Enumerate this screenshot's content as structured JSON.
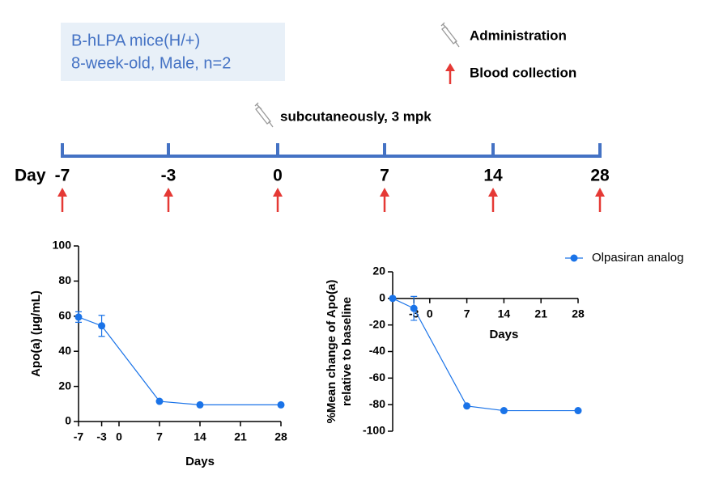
{
  "info_box": {
    "lines": [
      "B-hLPA mice(H/+)",
      "8-week-old, Male, n=2"
    ]
  },
  "key": {
    "administration": "Administration",
    "blood_collection": "Blood collection"
  },
  "timeline": {
    "prefix": "Day",
    "dosing_label": "subcutaneously, 3 mpk",
    "days": [
      -7,
      -3,
      0,
      7,
      14,
      28
    ]
  },
  "chart_data": [
    {
      "type": "line",
      "xlabel": "Days",
      "ylabel": [
        "Apo(a) (μg/mL)"
      ],
      "xlim": [
        -7,
        28
      ],
      "xticks": [
        -7,
        -3,
        0,
        7,
        14,
        21,
        28
      ],
      "ylim": [
        0,
        100
      ],
      "yticks": [
        0,
        20,
        40,
        60,
        80,
        100
      ],
      "series": [
        {
          "color": "#1a73e8",
          "x": [
            -7,
            -3,
            7,
            14,
            28
          ],
          "values": [
            59.5,
            54.5,
            11.5,
            9.5,
            9.5
          ],
          "errors": [
            3,
            6,
            null,
            null,
            null
          ]
        }
      ]
    },
    {
      "type": "line",
      "xlabel": "Days",
      "ylabel": [
        "%Mean change of Apo(a)",
        "relative to baseline"
      ],
      "xlim": [
        -7,
        28
      ],
      "xticks": [
        -3,
        0,
        7,
        14,
        21,
        28
      ],
      "ylim": [
        -100,
        20
      ],
      "yticks": [
        -100,
        -80,
        -60,
        -40,
        -20,
        0,
        20
      ],
      "legend": "upper right",
      "series": [
        {
          "name": "Olpasiran analog",
          "color": "#1a73e8",
          "x": [
            -7,
            -3,
            7,
            14,
            28
          ],
          "values": [
            0,
            -7.5,
            -81,
            -84.5,
            -84.5
          ],
          "errors": [
            null,
            9,
            null,
            null,
            null
          ]
        }
      ]
    }
  ]
}
